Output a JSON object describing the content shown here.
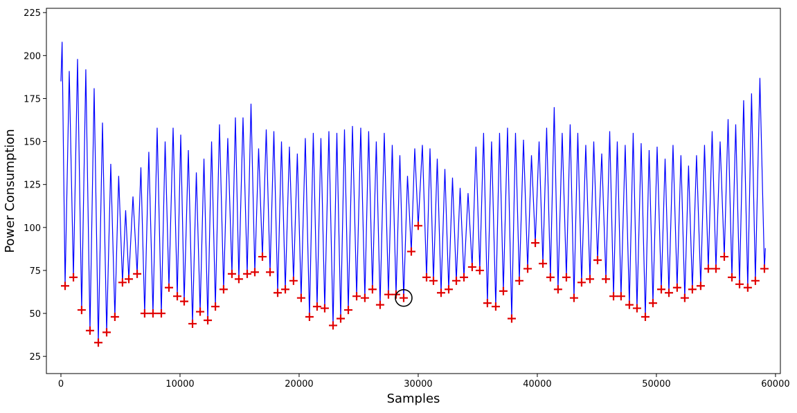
{
  "chart_data": {
    "type": "line",
    "xlabel": "Samples",
    "ylabel": "Power Consumption",
    "xlim": [
      -1220,
      60410
    ],
    "ylim": [
      15,
      227.5
    ],
    "xticks": [
      0,
      10000,
      20000,
      30000,
      40000,
      50000,
      60000
    ],
    "yticks": [
      25,
      50,
      75,
      100,
      125,
      150,
      175,
      200,
      225
    ],
    "grid": false,
    "series": [
      {
        "type": "line",
        "color": "#0000ff",
        "x": [
          0,
          100,
          350,
          700,
          1050,
          1395,
          1740,
          2090,
          2440,
          2790,
          3140,
          3490,
          3840,
          4185,
          4530,
          4850,
          5170,
          5435,
          5700,
          6050,
          6400,
          6715,
          7030,
          7380,
          7730,
          8080,
          8430,
          8750,
          9070,
          9420,
          9770,
          10060,
          10350,
          10700,
          11050,
          11370,
          11690,
          12010,
          12330,
          12650,
          12970,
          13315,
          13660,
          14010,
          14360,
          14650,
          14940,
          15290,
          15640,
          15960,
          16280,
          16600,
          16920,
          17240,
          17560,
          17880,
          18200,
          18520,
          18840,
          19185,
          19530,
          19850,
          20170,
          20520,
          20870,
          21190,
          21510,
          21830,
          22150,
          22500,
          22850,
          23170,
          23490,
          23810,
          24130,
          24480,
          24830,
          25175,
          25520,
          25840,
          26160,
          26480,
          26800,
          27150,
          27500,
          27820,
          28140,
          28460,
          28780,
          29100,
          29420,
          29710,
          30000,
          30350,
          30700,
          30990,
          31280,
          31600,
          31920,
          32240,
          32560,
          32880,
          33200,
          33520,
          33840,
          34185,
          34530,
          34850,
          35170,
          35490,
          35810,
          36160,
          36510,
          36830,
          37150,
          37500,
          37850,
          38170,
          38490,
          38840,
          39190,
          39510,
          39830,
          40150,
          40470,
          40785,
          41100,
          41420,
          41740,
          42090,
          42440,
          42760,
          43080,
          43400,
          43720,
          44070,
          44420,
          44740,
          45060,
          45410,
          45760,
          46080,
          46400,
          46715,
          47030,
          47380,
          47730,
          48050,
          48370,
          48720,
          49070,
          49390,
          49710,
          50060,
          50410,
          50730,
          51050,
          51395,
          51740,
          52060,
          52380,
          52700,
          53020,
          53370,
          53720,
          54040,
          54360,
          54680,
          55000,
          55350,
          55700,
          56020,
          56340,
          56660,
          56980,
          57325,
          57670,
          57990,
          58310,
          58690,
          59070,
          59150
        ],
        "values": [
          185,
          208,
          66,
          191,
          71,
          198,
          52,
          192,
          40,
          181,
          33,
          161,
          39,
          137,
          48,
          130,
          68,
          110,
          70,
          118,
          73,
          135,
          50,
          144,
          50,
          158,
          50,
          150,
          65,
          158,
          60,
          154,
          57,
          145,
          44,
          132,
          51,
          140,
          46,
          150,
          54,
          160,
          64,
          152,
          73,
          164,
          70,
          164,
          73,
          172,
          74,
          146,
          83,
          157,
          74,
          156,
          62,
          150,
          64,
          147,
          69,
          143,
          59,
          152,
          48,
          155,
          54,
          152,
          53,
          156,
          43,
          155,
          47,
          157,
          52,
          159,
          60,
          158,
          59,
          156,
          64,
          150,
          55,
          155,
          61,
          148,
          61,
          142,
          59,
          130,
          86,
          146,
          101,
          148,
          71,
          146,
          69,
          140,
          62,
          134,
          64,
          129,
          69,
          123,
          71,
          120,
          77,
          147,
          75,
          155,
          56,
          150,
          54,
          155,
          63,
          158,
          47,
          155,
          69,
          151,
          76,
          142,
          91,
          150,
          79,
          158,
          71,
          170,
          64,
          155,
          71,
          160,
          59,
          155,
          68,
          148,
          70,
          150,
          81,
          143,
          70,
          156,
          60,
          150,
          60,
          148,
          55,
          155,
          53,
          149,
          48,
          145,
          56,
          147,
          64,
          140,
          62,
          148,
          65,
          142,
          59,
          136,
          64,
          142,
          66,
          148,
          76,
          156,
          76,
          150,
          83,
          163,
          71,
          160,
          67,
          174,
          65,
          178,
          69,
          187,
          76,
          88
        ]
      },
      {
        "type": "marker",
        "color": "#e00000",
        "highlight_index": 43,
        "x": [
          350,
          1050,
          1740,
          2440,
          3140,
          3840,
          4530,
          5170,
          5700,
          6400,
          7030,
          7730,
          8430,
          9070,
          9770,
          10350,
          11050,
          11690,
          12330,
          12970,
          13660,
          14360,
          14940,
          15640,
          16280,
          16920,
          17560,
          18200,
          18840,
          19530,
          20170,
          20870,
          21510,
          22150,
          22850,
          23490,
          24130,
          24830,
          25520,
          26160,
          26800,
          27500,
          28140,
          28780,
          29420,
          30000,
          30700,
          31280,
          31920,
          32560,
          33200,
          33840,
          34530,
          35170,
          35810,
          36510,
          37150,
          37850,
          38490,
          39190,
          39830,
          40470,
          41100,
          41740,
          42440,
          43080,
          43720,
          44420,
          45060,
          45760,
          46400,
          47030,
          47730,
          48370,
          49070,
          49710,
          50410,
          51050,
          51740,
          52380,
          53020,
          53720,
          54360,
          55000,
          55700,
          56340,
          56980,
          57670,
          58310,
          59070
        ],
        "values": [
          66,
          71,
          52,
          40,
          33,
          39,
          48,
          68,
          70,
          73,
          50,
          50,
          50,
          65,
          60,
          57,
          44,
          51,
          46,
          54,
          64,
          73,
          70,
          73,
          74,
          83,
          74,
          62,
          64,
          69,
          59,
          48,
          54,
          53,
          43,
          47,
          52,
          60,
          59,
          64,
          55,
          61,
          61,
          59,
          86,
          101,
          71,
          69,
          62,
          64,
          69,
          71,
          77,
          75,
          56,
          54,
          63,
          47,
          69,
          76,
          91,
          79,
          71,
          64,
          71,
          59,
          68,
          70,
          81,
          70,
          60,
          60,
          55,
          53,
          48,
          56,
          64,
          62,
          65,
          59,
          64,
          66,
          76,
          76,
          83,
          71,
          67,
          65,
          69,
          76
        ]
      }
    ]
  }
}
